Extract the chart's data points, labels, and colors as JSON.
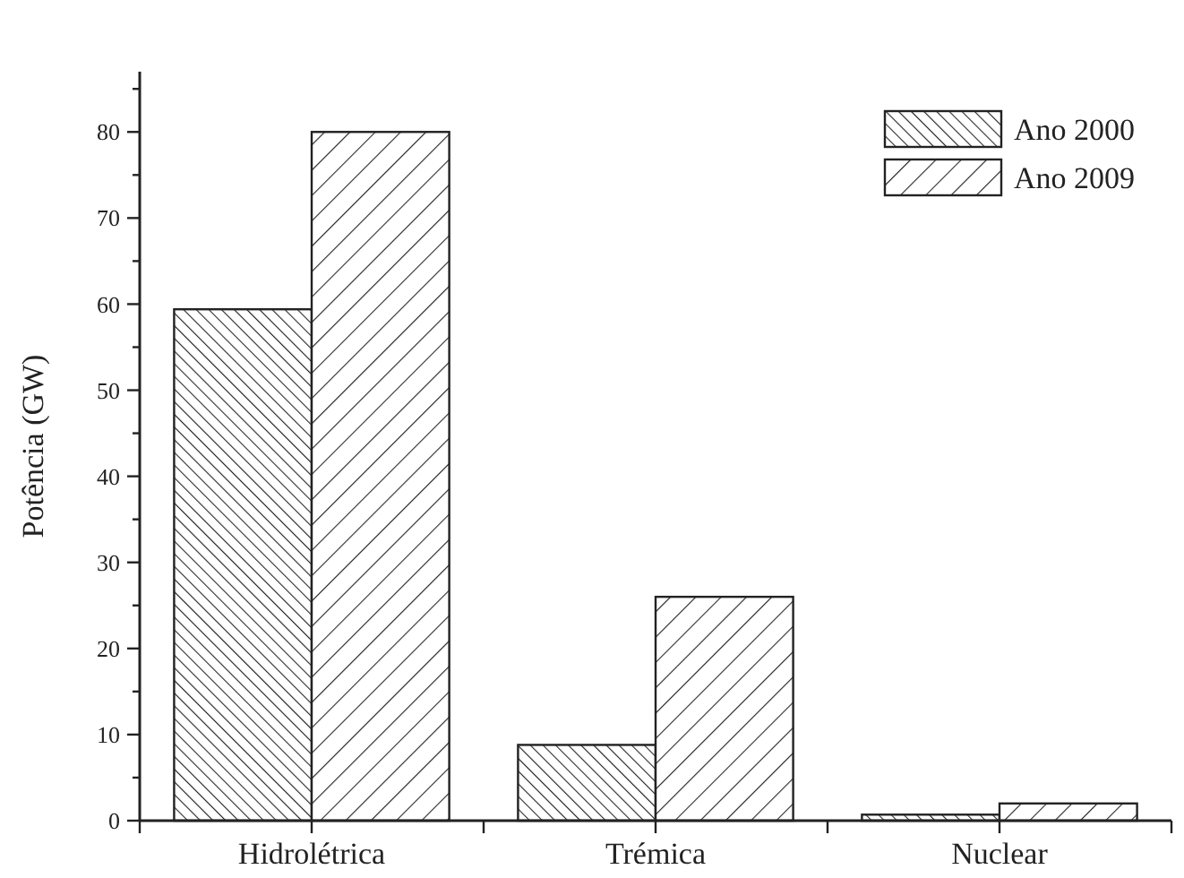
{
  "chart_data": {
    "type": "bar",
    "ylabel": "Potência (GW)",
    "categories": [
      "Hidrolétrica",
      "Trémica",
      "Nuclear"
    ],
    "series": [
      {
        "name": "Ano 2000",
        "color": "#222222",
        "values": [
          59.4,
          8.8,
          0.7
        ]
      },
      {
        "name": "Ano 2009",
        "color": "#222222",
        "values": [
          80,
          26,
          2
        ]
      }
    ],
    "ylim": [
      0,
      87
    ],
    "yticks": [
      0,
      {
        "value": 5,
        "label": null
      },
      10,
      {
        "value": 15,
        "label": null
      },
      20,
      {
        "value": 25,
        "label": null
      },
      30,
      {
        "value": 35,
        "label": null
      },
      40,
      {
        "value": 45,
        "label": null
      },
      50,
      {
        "value": 55,
        "label": null
      },
      60,
      {
        "value": 65,
        "label": null
      },
      70,
      {
        "value": 75,
        "label": null
      },
      80,
      {
        "value": 85,
        "label": null
      }
    ],
    "legend": "top right",
    "grid": false
  }
}
